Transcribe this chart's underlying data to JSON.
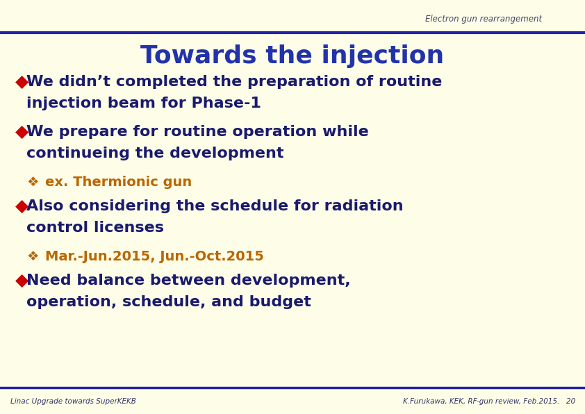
{
  "bg_color": "#FEFEE8",
  "header_bar_color": "#2222AA",
  "header_text": "Electron gun rearrangement",
  "header_text_color": "#444466",
  "header_text_size": 8.5,
  "title": "Towards the injection",
  "title_color": "#2233AA",
  "title_size": 26,
  "footer_bar_color": "#2222AA",
  "footer_left": "Linac Upgrade towards SuperKEKB",
  "footer_right": "K.Furukawa, KEK, RF-gun review, Feb.2015.   20",
  "footer_color": "#333366",
  "footer_size": 7.5,
  "bullet_color": "#CC0000",
  "sub_bullet_color": "#BB6600",
  "dark_blue": "#1A1A6E",
  "orange": "#BB6600",
  "main_fontsize": 16,
  "sub_fontsize": 14,
  "items": [
    {
      "type": "main",
      "lines": [
        "We didn’t completed the preparation of routine",
        "injection beam for Phase-1"
      ]
    },
    {
      "type": "main",
      "lines": [
        "We prepare for routine operation while",
        "continueing the development"
      ]
    },
    {
      "type": "sub",
      "lines": [
        "ex. Thermionic gun"
      ]
    },
    {
      "type": "main",
      "lines": [
        "Also considering the schedule for radiation",
        "control licenses"
      ]
    },
    {
      "type": "sub",
      "lines": [
        "Mar.-Jun.2015, Jun.-Oct.2015"
      ]
    },
    {
      "type": "main",
      "lines": [
        "Need balance between development,",
        "operation, schedule, and budget"
      ]
    }
  ]
}
